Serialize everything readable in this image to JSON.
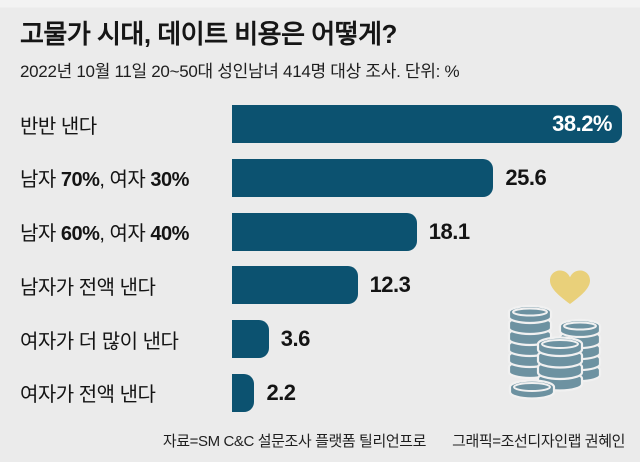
{
  "page": {
    "background_color": "#ebebeb"
  },
  "chart_data": {
    "type": "bar",
    "orientation": "horizontal",
    "title": "고물가 시대, 데이트 비용은 어떻게?",
    "subtitle": "2022년 10월 11일 20~50대 성인남녀 414명 대상 조사. 단위: %",
    "unit": "%",
    "categories": [
      "반반 낸다",
      "남자 70%, 여자 30%",
      "남자 60%, 여자 40%",
      "남자가 전액 낸다",
      "여자가 더 많이 낸다",
      "여자가 전액 낸다"
    ],
    "values": [
      38.2,
      25.6,
      18.1,
      12.3,
      3.6,
      2.2
    ],
    "xlim": [
      0,
      40
    ],
    "grid": false,
    "legend": false,
    "bar_color": "#0c5270",
    "rows": [
      {
        "label_parts": [
          {
            "text": "반반 낸다",
            "bold": false
          }
        ],
        "value": 38.2,
        "value_label": "38.2%",
        "value_inside": true
      },
      {
        "label_parts": [
          {
            "text": "남자 ",
            "bold": false
          },
          {
            "text": "70%",
            "bold": true
          },
          {
            "text": ", 여자 ",
            "bold": false
          },
          {
            "text": "30%",
            "bold": true
          }
        ],
        "value": 25.6,
        "value_label": "25.6",
        "value_inside": false
      },
      {
        "label_parts": [
          {
            "text": "남자 ",
            "bold": false
          },
          {
            "text": "60%",
            "bold": true
          },
          {
            "text": ", 여자 ",
            "bold": false
          },
          {
            "text": "40%",
            "bold": true
          }
        ],
        "value": 18.1,
        "value_label": "18.1",
        "value_inside": false
      },
      {
        "label_parts": [
          {
            "text": "남자가 전액 낸다",
            "bold": false
          }
        ],
        "value": 12.3,
        "value_label": "12.3",
        "value_inside": false
      },
      {
        "label_parts": [
          {
            "text": "여자가 더 많이 낸다",
            "bold": false
          }
        ],
        "value": 3.6,
        "value_label": "3.6",
        "value_inside": false
      },
      {
        "label_parts": [
          {
            "text": "여자가 전액 낸다",
            "bold": false
          }
        ],
        "value": 2.2,
        "value_label": "2.2",
        "value_inside": false
      }
    ]
  },
  "footer": {
    "source": "자료=SM C&C 설문조사 플랫폼 틸리언프로",
    "credit": "그래픽=조선디자인랩 권혜인"
  },
  "illustration": {
    "name": "coin-stacks-with-heart",
    "coin_color": "#6d92a1",
    "heart_color": "#e9d07a",
    "outline_color": "#f1f1f1"
  }
}
